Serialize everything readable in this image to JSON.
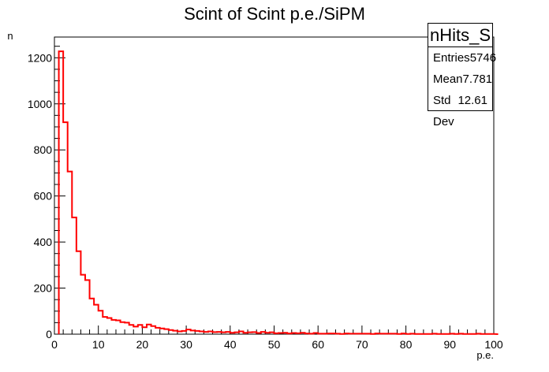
{
  "chart_data": {
    "type": "histogram",
    "title": "Scint of Scint p.e./SiPM",
    "xlabel": "p.e.",
    "ylabel": "n",
    "xlim": [
      0,
      100
    ],
    "ylim": [
      0,
      1290
    ],
    "bin_width": 1,
    "x_ticks": [
      "0",
      "10",
      "20",
      "30",
      "40",
      "50",
      "60",
      "70",
      "80",
      "90",
      "100"
    ],
    "y_ticks": [
      "0",
      "200",
      "400",
      "600",
      "800",
      "1000",
      "1200"
    ],
    "bin_edges": [
      1,
      2,
      3,
      4,
      5,
      6,
      7,
      8,
      9,
      10,
      11,
      12,
      13,
      14,
      15,
      16,
      17,
      18,
      19,
      20,
      21,
      22,
      23,
      24,
      25,
      26,
      27,
      28,
      29,
      30,
      31,
      32,
      33,
      34,
      35,
      36,
      37,
      38,
      39,
      40,
      41,
      42,
      43,
      44,
      45,
      46,
      47,
      48,
      49,
      50,
      51,
      52,
      53,
      54,
      55,
      56,
      57,
      58,
      59,
      60,
      61,
      62,
      63,
      64,
      65,
      66,
      67,
      68,
      69,
      70,
      71,
      72,
      73,
      74,
      75,
      76,
      77,
      78,
      79,
      80,
      81,
      82,
      83,
      84,
      85,
      86,
      87,
      88,
      89,
      90,
      91,
      92,
      93,
      94,
      95,
      96,
      97,
      98,
      99,
      100
    ],
    "counts": [
      1228,
      920,
      706,
      507,
      360,
      258,
      235,
      155,
      128,
      102,
      75,
      70,
      62,
      60,
      52,
      50,
      40,
      33,
      40,
      30,
      42,
      35,
      28,
      25,
      22,
      18,
      15,
      12,
      14,
      20,
      16,
      14,
      12,
      10,
      12,
      9,
      10,
      8,
      10,
      6,
      8,
      12,
      6,
      8,
      9,
      5,
      10,
      6,
      8,
      4,
      5,
      6,
      3,
      5,
      4,
      6,
      3,
      2,
      5,
      2,
      2,
      3,
      3,
      2,
      1,
      3,
      2,
      2,
      2,
      2,
      2,
      1,
      3,
      2,
      2,
      2,
      2,
      1,
      3,
      1,
      2,
      1,
      1,
      1,
      1,
      2,
      1,
      1,
      1,
      2,
      1,
      2,
      1,
      1,
      1,
      2,
      1,
      1,
      1
    ],
    "series": [
      {
        "name": "nHits_S",
        "color": "#ff0000"
      }
    ],
    "grid": false,
    "legend_placement": "top-right"
  },
  "stats_box": {
    "name": "nHits_S",
    "rows": [
      {
        "label": "Entries",
        "value": "5746"
      },
      {
        "label": "Mean",
        "value": "7.781"
      },
      {
        "label": "Std Dev",
        "value": "12.61"
      }
    ]
  }
}
